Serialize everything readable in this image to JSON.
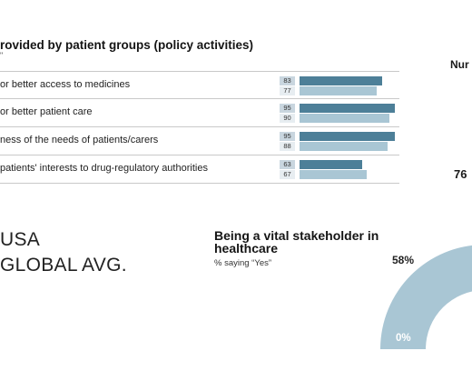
{
  "colors": {
    "usa_bar": "#4d7f98",
    "global_bar": "#a9c6d4",
    "donut": "#a9c6d4"
  },
  "table": {
    "title": "rovided by patient groups (policy activities)",
    "subtitle": "\"",
    "rows": [
      {
        "label": "or better access to medicines",
        "usa": "83",
        "global": "77"
      },
      {
        "label": "or better patient care",
        "usa": "95",
        "global": "90"
      },
      {
        "label": "ness of the needs of patients/carers",
        "usa": "95",
        "global": "88"
      },
      {
        "label": "patients' interests to drug-regulatory authorities",
        "usa": "63",
        "global": "67"
      }
    ]
  },
  "right": {
    "heading": "Nur",
    "value": "76"
  },
  "legend": {
    "usa": "USA",
    "global": "GLOBAL AVG."
  },
  "donut": {
    "title": "Being a vital stakeholder in healthcare",
    "subtitle": "% saying “Yes”",
    "value_label": "58%",
    "zero_label": "0%"
  },
  "chart_data": {
    "type": "bar",
    "title": "rovided by patient groups (policy activities)",
    "categories": [
      "or better access to medicines",
      "or better patient care",
      "ness of the needs of patients/carers",
      "patients' interests to drug-regulatory authorities"
    ],
    "series": [
      {
        "name": "USA",
        "values": [
          83,
          95,
          95,
          63
        ]
      },
      {
        "name": "GLOBAL AVG.",
        "values": [
          77,
          90,
          88,
          67
        ]
      }
    ],
    "xlim": [
      0,
      100
    ],
    "orientation": "horizontal"
  }
}
